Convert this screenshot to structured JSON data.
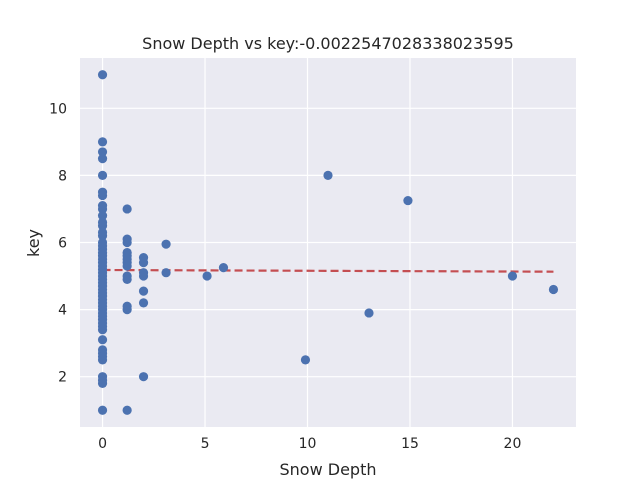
{
  "chart_data": {
    "type": "scatter",
    "title": "Snow Depth vs key:-0.0022547028338023595",
    "xlabel": "Snow Depth",
    "ylabel": "key",
    "xlim": [
      -1.1,
      23.1
    ],
    "ylim": [
      0.5,
      11.5
    ],
    "xticks": [
      0,
      5,
      10,
      15,
      20
    ],
    "yticks": [
      2,
      4,
      6,
      8,
      10
    ],
    "grid": true,
    "colors": {
      "background": "#eaeaf2",
      "grid": "#ffffff",
      "points": "#4c72b0",
      "trend": "#c44e52"
    },
    "points": [
      [
        0,
        11.0
      ],
      [
        0,
        9.0
      ],
      [
        0,
        8.7
      ],
      [
        0,
        8.5
      ],
      [
        0,
        8.0
      ],
      [
        0,
        7.5
      ],
      [
        0,
        7.4
      ],
      [
        0,
        7.1
      ],
      [
        0,
        7.0
      ],
      [
        0,
        6.8
      ],
      [
        0,
        6.6
      ],
      [
        0,
        6.5
      ],
      [
        0,
        6.3
      ],
      [
        0,
        6.2
      ],
      [
        0,
        6.0
      ],
      [
        0,
        5.9
      ],
      [
        0,
        5.8
      ],
      [
        0,
        5.7
      ],
      [
        0,
        5.6
      ],
      [
        0,
        5.5
      ],
      [
        0,
        5.4
      ],
      [
        0,
        5.3
      ],
      [
        0,
        5.2
      ],
      [
        0,
        5.1
      ],
      [
        0,
        5.0
      ],
      [
        0,
        4.9
      ],
      [
        0,
        4.8
      ],
      [
        0,
        4.7
      ],
      [
        0,
        4.6
      ],
      [
        0,
        4.5
      ],
      [
        0,
        4.4
      ],
      [
        0,
        4.3
      ],
      [
        0,
        4.2
      ],
      [
        0,
        4.1
      ],
      [
        0,
        4.0
      ],
      [
        0,
        3.9
      ],
      [
        0,
        3.8
      ],
      [
        0,
        3.7
      ],
      [
        0,
        3.6
      ],
      [
        0,
        3.5
      ],
      [
        0,
        3.4
      ],
      [
        0,
        3.1
      ],
      [
        0,
        2.8
      ],
      [
        0,
        2.7
      ],
      [
        0,
        2.6
      ],
      [
        0,
        2.5
      ],
      [
        0,
        2.0
      ],
      [
        0,
        1.9
      ],
      [
        0,
        1.8
      ],
      [
        0,
        1.0
      ],
      [
        1.2,
        7.0
      ],
      [
        1.2,
        6.1
      ],
      [
        1.2,
        6.0
      ],
      [
        1.2,
        5.7
      ],
      [
        1.2,
        5.6
      ],
      [
        1.2,
        5.5
      ],
      [
        1.2,
        5.4
      ],
      [
        1.2,
        5.3
      ],
      [
        1.2,
        5.0
      ],
      [
        1.2,
        4.9
      ],
      [
        1.2,
        4.1
      ],
      [
        1.2,
        4.0
      ],
      [
        1.2,
        1.0
      ],
      [
        2.0,
        5.55
      ],
      [
        2.0,
        5.4
      ],
      [
        2.0,
        5.1
      ],
      [
        2.0,
        5.0
      ],
      [
        2.0,
        4.55
      ],
      [
        2.0,
        4.2
      ],
      [
        2.0,
        2.0
      ],
      [
        3.1,
        5.95
      ],
      [
        3.1,
        5.1
      ],
      [
        5.1,
        5.0
      ],
      [
        5.9,
        5.25
      ],
      [
        9.9,
        2.5
      ],
      [
        11.0,
        8.0
      ],
      [
        13.0,
        3.9
      ],
      [
        14.9,
        7.25
      ],
      [
        20.0,
        5.0
      ],
      [
        22.0,
        4.6
      ]
    ],
    "trendline": {
      "x": [
        0,
        22
      ],
      "y": [
        5.18,
        5.13
      ]
    }
  }
}
